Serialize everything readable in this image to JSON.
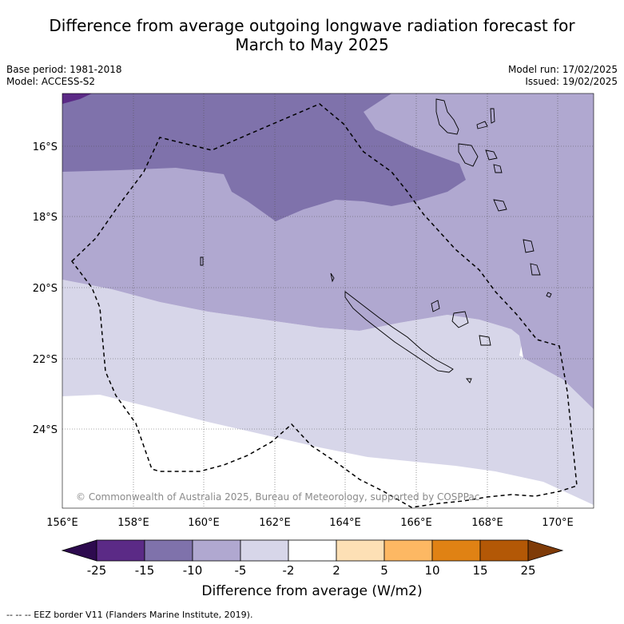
{
  "title_line1": "Difference from average outgoing longwave radiation forecast for",
  "title_line2": "March to May 2025",
  "base_period": "Base period: 1981-2018",
  "model": "Model: ACCESS-S2",
  "model_run": "Model run: 17/02/2025",
  "issued": "Issued: 19/02/2025",
  "lat_labels": [
    "16°S",
    "18°S",
    "20°S",
    "22°S",
    "24°S"
  ],
  "lon_labels": [
    "156°E",
    "158°E",
    "160°E",
    "162°E",
    "164°E",
    "166°E",
    "168°E",
    "170°E"
  ],
  "copyright": "© Commonwealth of Australia 2025, Bureau of Meteorology, supported by COSPPac",
  "colorbar": {
    "ticks": [
      "-25",
      "-15",
      "-10",
      "-5",
      "-2",
      "2",
      "5",
      "10",
      "15",
      "25"
    ],
    "colors": [
      "#2d0a4e",
      "#5b2a86",
      "#7f72ab",
      "#b0a8d0",
      "#d7d6e9",
      "#ffffff",
      "#fde0b5",
      "#fdb863",
      "#e08214",
      "#b35806",
      "#7f3b08"
    ],
    "label": "Difference from average (W/m2)"
  },
  "footnote": "--  --  -- EEZ border V11 (Flanders Marine Institute, 2019)."
}
